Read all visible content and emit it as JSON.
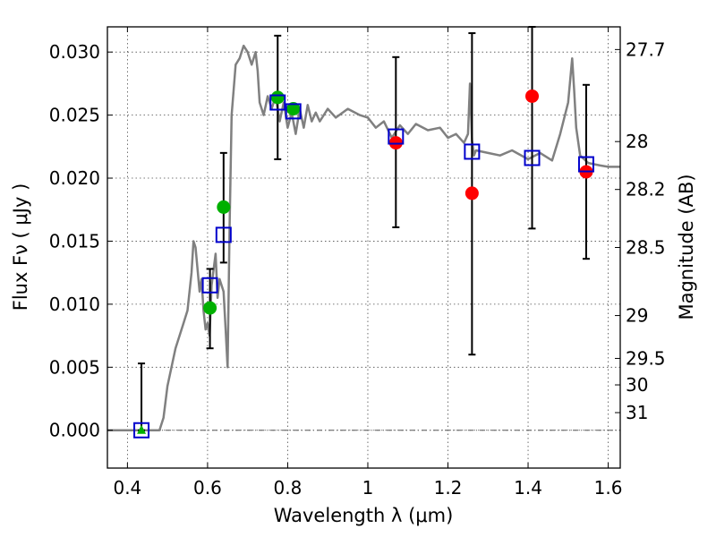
{
  "chart_data": {
    "type": "scatter",
    "xlabel": "Wavelength  λ (μm)",
    "ylabel": "Flux  Fν  ( μJy )",
    "y2label": "Magnitude (AB)",
    "xlim": [
      0.35,
      1.63
    ],
    "ylim": [
      -0.003,
      0.032
    ],
    "grid": true,
    "x_ticks": [
      {
        "value": 0.4,
        "label": "0.4"
      },
      {
        "value": 0.6,
        "label": "0.6"
      },
      {
        "value": 0.8,
        "label": "0.8"
      },
      {
        "value": 1.0,
        "label": "1"
      },
      {
        "value": 1.2,
        "label": "1.2"
      },
      {
        "value": 1.4,
        "label": "1.4"
      },
      {
        "value": 1.6,
        "label": "1.6"
      }
    ],
    "y_ticks": [
      {
        "value": 0.0,
        "label": "0.000"
      },
      {
        "value": 0.005,
        "label": "0.005"
      },
      {
        "value": 0.01,
        "label": "0.010"
      },
      {
        "value": 0.015,
        "label": "0.015"
      },
      {
        "value": 0.02,
        "label": "0.020"
      },
      {
        "value": 0.025,
        "label": "0.025"
      },
      {
        "value": 0.03,
        "label": "0.030"
      }
    ],
    "mag_ticks": [
      {
        "flux": 0.0302,
        "label": "27.7"
      },
      {
        "flux": 0.0229,
        "label": "28"
      },
      {
        "flux": 0.0191,
        "label": "28.2"
      },
      {
        "flux": 0.0145,
        "label": "28.5"
      },
      {
        "flux": 0.0091,
        "label": "29"
      },
      {
        "flux": 0.0057,
        "label": "29.5"
      },
      {
        "flux": 0.0036,
        "label": "30"
      },
      {
        "flux": 0.0014,
        "label": "31"
      }
    ],
    "colors": {
      "model": "#808080",
      "model_photometry": "#0000cc",
      "observed_red": "#ff0000",
      "observed_green": "#00b000",
      "errorbar": "#000000",
      "zero_line": "#555555"
    },
    "series": [
      {
        "name": "model spectrum",
        "kind": "line",
        "x": [
          0.35,
          0.48,
          0.49,
          0.5,
          0.52,
          0.53,
          0.54,
          0.55,
          0.56,
          0.565,
          0.57,
          0.58,
          0.585,
          0.59,
          0.595,
          0.6,
          0.605,
          0.61,
          0.62,
          0.625,
          0.63,
          0.64,
          0.645,
          0.65,
          0.655,
          0.66,
          0.67,
          0.68,
          0.69,
          0.7,
          0.71,
          0.72,
          0.725,
          0.73,
          0.74,
          0.75,
          0.76,
          0.77,
          0.78,
          0.79,
          0.8,
          0.81,
          0.82,
          0.83,
          0.84,
          0.85,
          0.86,
          0.87,
          0.88,
          0.9,
          0.92,
          0.95,
          0.98,
          1.0,
          1.02,
          1.04,
          1.06,
          1.08,
          1.1,
          1.12,
          1.15,
          1.18,
          1.2,
          1.22,
          1.24,
          1.25,
          1.255,
          1.26,
          1.265,
          1.27,
          1.3,
          1.33,
          1.36,
          1.4,
          1.43,
          1.46,
          1.48,
          1.5,
          1.51,
          1.515,
          1.52,
          1.53,
          1.55,
          1.58,
          1.6,
          1.63
        ],
        "y": [
          0.0,
          0.0,
          0.001,
          0.0035,
          0.0065,
          0.0075,
          0.0085,
          0.0095,
          0.0125,
          0.015,
          0.0145,
          0.011,
          0.012,
          0.0095,
          0.008,
          0.0085,
          0.0075,
          0.0115,
          0.014,
          0.0105,
          0.012,
          0.011,
          0.008,
          0.005,
          0.016,
          0.025,
          0.029,
          0.0295,
          0.0305,
          0.03,
          0.029,
          0.03,
          0.0285,
          0.026,
          0.025,
          0.0265,
          0.0255,
          0.0265,
          0.0245,
          0.026,
          0.024,
          0.0252,
          0.0235,
          0.0255,
          0.024,
          0.0258,
          0.0245,
          0.0252,
          0.0245,
          0.0255,
          0.0248,
          0.0255,
          0.025,
          0.0248,
          0.024,
          0.0245,
          0.0232,
          0.0242,
          0.0235,
          0.0243,
          0.0238,
          0.024,
          0.0232,
          0.0235,
          0.0228,
          0.0235,
          0.0275,
          0.023,
          0.0218,
          0.0222,
          0.022,
          0.0218,
          0.0222,
          0.0215,
          0.022,
          0.0214,
          0.0235,
          0.026,
          0.0295,
          0.027,
          0.024,
          0.0218,
          0.0212,
          0.021,
          0.0209,
          0.0209
        ]
      },
      {
        "name": "model photometry",
        "kind": "open-square",
        "points": [
          {
            "x": 0.435,
            "y": 0.0
          },
          {
            "x": 0.606,
            "y": 0.0115
          },
          {
            "x": 0.64,
            "y": 0.0155
          },
          {
            "x": 0.775,
            "y": 0.026
          },
          {
            "x": 0.814,
            "y": 0.0253
          },
          {
            "x": 1.07,
            "y": 0.0233
          },
          {
            "x": 1.26,
            "y": 0.0221
          },
          {
            "x": 1.41,
            "y": 0.0216
          },
          {
            "x": 1.545,
            "y": 0.0211
          }
        ]
      },
      {
        "name": "observed (red)",
        "kind": "filled-circle",
        "points": [
          {
            "x": 1.07,
            "y": 0.0228
          },
          {
            "x": 1.26,
            "y": 0.0188
          },
          {
            "x": 1.41,
            "y": 0.0265
          },
          {
            "x": 1.545,
            "y": 0.0205
          }
        ]
      },
      {
        "name": "observed (green)",
        "kind": "filled-circle",
        "points": [
          {
            "x": 0.606,
            "y": 0.0097
          },
          {
            "x": 0.64,
            "y": 0.0177
          },
          {
            "x": 0.775,
            "y": 0.0264
          },
          {
            "x": 0.814,
            "y": 0.0255
          }
        ]
      },
      {
        "name": "observed upper limit",
        "kind": "triangle",
        "points": [
          {
            "x": 0.435,
            "y": 0.0
          }
        ]
      }
    ],
    "errorbars": [
      {
        "x": 0.435,
        "low": 0.0,
        "high": 0.0053
      },
      {
        "x": 0.606,
        "low": 0.0065,
        "high": 0.0128
      },
      {
        "x": 0.64,
        "low": 0.0133,
        "high": 0.022
      },
      {
        "x": 0.775,
        "low": 0.0215,
        "high": 0.0313
      },
      {
        "x": 1.07,
        "low": 0.0161,
        "high": 0.0296
      },
      {
        "x": 1.26,
        "low": 0.006,
        "high": 0.0315
      },
      {
        "x": 1.41,
        "low": 0.016,
        "high": 0.032
      },
      {
        "x": 1.545,
        "low": 0.0136,
        "high": 0.0274
      }
    ]
  }
}
